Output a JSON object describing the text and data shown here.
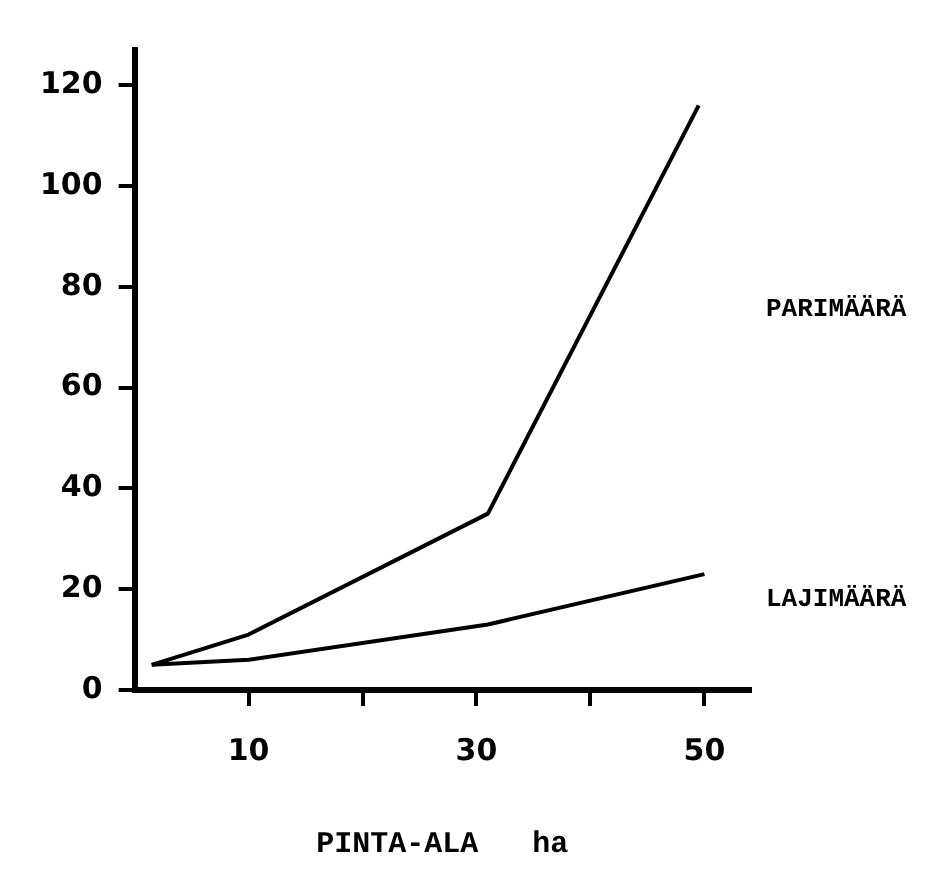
{
  "chart_data": {
    "type": "line",
    "xlabel": "PINTA-ALA   ha",
    "series": [
      {
        "name": "PARIMÄÄRÄ",
        "color": "#000000",
        "x": [
          1.5,
          10,
          31,
          49.5
        ],
        "values": [
          5,
          11,
          35,
          116
        ]
      },
      {
        "name": "LAJIMÄÄRÄ",
        "color": "#000000",
        "x": [
          1.5,
          10,
          31,
          50
        ],
        "values": [
          5,
          6,
          13,
          23
        ]
      }
    ],
    "xlim": [
      0,
      54
    ],
    "ylim": [
      0,
      127
    ],
    "xticks": [
      10,
      {
        "value": 20,
        "label": null
      },
      30,
      {
        "value": 40,
        "label": null
      },
      50
    ],
    "yticks": [
      0,
      20,
      40,
      60,
      80,
      100,
      120
    ],
    "grid": false,
    "legend": false,
    "marker": "none",
    "line_style": "solid"
  }
}
